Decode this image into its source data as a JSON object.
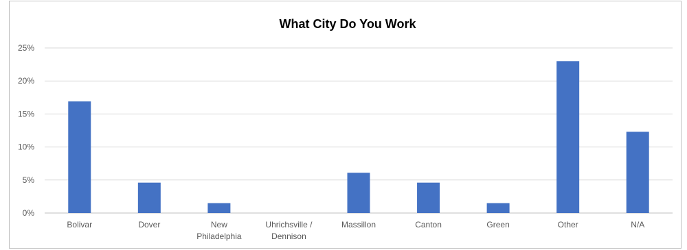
{
  "chart_data": {
    "type": "bar",
    "title": "What City Do You Work",
    "xlabel": "",
    "ylabel": "",
    "categories": [
      [
        "Bolivar"
      ],
      [
        "Dover"
      ],
      [
        "New",
        "Philadelphia"
      ],
      [
        "Uhrichsville /",
        "Dennison"
      ],
      [
        "Massillon"
      ],
      [
        "Canton"
      ],
      [
        "Green"
      ],
      [
        "Other"
      ],
      [
        "N/A"
      ]
    ],
    "values": [
      16.9,
      4.6,
      1.5,
      0,
      6.1,
      4.6,
      1.5,
      23.0,
      12.3
    ],
    "ylim": [
      0,
      25
    ],
    "yticks": [
      "0%",
      "5%",
      "10%",
      "15%",
      "20%",
      "25%"
    ],
    "ytick_values": [
      0,
      5,
      10,
      15,
      20,
      25
    ],
    "grid": true,
    "legend": "none",
    "colors": {
      "bar": "#4472c4",
      "grid": "#d9d9d9",
      "text": "#595959"
    }
  }
}
